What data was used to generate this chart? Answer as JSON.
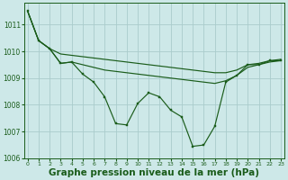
{
  "background_color": "#cde8e8",
  "grid_color": "#aacccc",
  "line_color": "#1a5c1a",
  "xlabel": "Graphe pression niveau de la mer (hPa)",
  "ylim": [
    1006.0,
    1011.8
  ],
  "xlim": [
    -0.3,
    23.3
  ],
  "yticks": [
    1006,
    1007,
    1008,
    1009,
    1010,
    1011
  ],
  "xticks": [
    0,
    1,
    2,
    3,
    4,
    5,
    6,
    7,
    8,
    9,
    10,
    11,
    12,
    13,
    14,
    15,
    16,
    17,
    18,
    19,
    20,
    21,
    22,
    23
  ],
  "series_zigzag": [
    1011.5,
    1010.4,
    1010.1,
    1009.55,
    1009.6,
    1009.15,
    1008.85,
    1008.3,
    1007.3,
    1007.25,
    1008.05,
    1008.45,
    1008.3,
    1007.8,
    1007.55,
    1006.45,
    1006.5,
    1007.2,
    1008.85,
    1009.1,
    1009.5,
    1009.5,
    1009.65,
    1009.65
  ],
  "series_upper": [
    1011.5,
    1010.4,
    1010.1,
    1009.9,
    1009.85,
    1009.8,
    1009.75,
    1009.7,
    1009.65,
    1009.6,
    1009.55,
    1009.5,
    1009.45,
    1009.4,
    1009.35,
    1009.3,
    1009.25,
    1009.2,
    1009.2,
    1009.3,
    1009.5,
    1009.55,
    1009.65,
    1009.7
  ],
  "series_lower": [
    1011.5,
    1010.4,
    1010.1,
    1009.55,
    1009.6,
    1009.5,
    1009.4,
    1009.3,
    1009.25,
    1009.2,
    1009.15,
    1009.1,
    1009.05,
    1009.0,
    1008.95,
    1008.9,
    1008.85,
    1008.8,
    1008.9,
    1009.1,
    1009.4,
    1009.5,
    1009.6,
    1009.65
  ]
}
